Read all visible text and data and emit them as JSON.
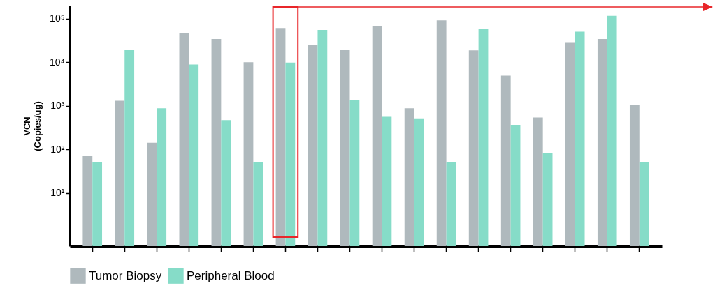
{
  "chart_data": {
    "type": "bar",
    "ylabel": "VCN\n(Copies/ug)",
    "categories": [
      null,
      null,
      null,
      null,
      null,
      null,
      null,
      null,
      null,
      null,
      null,
      null,
      null,
      null,
      null,
      null,
      null,
      null
    ],
    "series": [
      {
        "name": "Tumor Biopsy",
        "color": "#afb9bd",
        "values": [
          71,
          1300,
          142,
          47000,
          34000,
          10000,
          61000,
          25000,
          19500,
          66000,
          880,
          91000,
          18700,
          4900,
          540,
          29000,
          34000,
          1070
        ]
      },
      {
        "name": "Peripheral Blood",
        "color": "#86dcc8",
        "values": [
          50,
          19500,
          880,
          8900,
          470,
          50,
          9800,
          55000,
          1380,
          560,
          515,
          50,
          58000,
          365,
          83,
          50000,
          116000,
          50
        ]
      }
    ],
    "log": true,
    "ylim": [
      0.6,
      200000
    ],
    "yticks": [
      {
        "value": 10,
        "label": "10¹"
      },
      {
        "value": 100,
        "label": "10²"
      },
      {
        "value": 1000,
        "label": "10³"
      },
      {
        "value": 10000,
        "label": "10⁴"
      },
      {
        "value": 100000,
        "label": "10⁵"
      }
    ],
    "grid": false,
    "legend": "bottom"
  }
}
